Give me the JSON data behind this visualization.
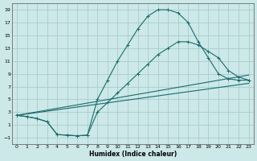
{
  "title": "",
  "xlabel": "Humidex (Indice chaleur)",
  "bg_color": "#cce8e8",
  "grid_color": "#aacccc",
  "line_color": "#1a6b6b",
  "xlim": [
    -0.5,
    23.5
  ],
  "ylim": [
    -2.0,
    20.0
  ],
  "xticks": [
    0,
    1,
    2,
    3,
    4,
    5,
    6,
    7,
    8,
    9,
    10,
    11,
    12,
    13,
    14,
    15,
    16,
    17,
    18,
    19,
    20,
    21,
    22,
    23
  ],
  "yticks": [
    -1,
    1,
    3,
    5,
    7,
    9,
    11,
    13,
    15,
    17,
    19
  ],
  "curve_x": [
    0,
    1,
    2,
    3,
    4,
    5,
    6,
    7,
    8,
    9,
    10,
    11,
    12,
    13,
    14,
    15,
    16,
    17,
    18,
    19,
    20,
    21,
    22,
    23
  ],
  "curve_y": [
    2.5,
    2.3,
    2.0,
    1.5,
    -0.5,
    -0.6,
    -0.7,
    -0.6,
    5.0,
    8.0,
    11.0,
    13.5,
    16.0,
    18.0,
    19.0,
    19.0,
    18.5,
    17.0,
    14.0,
    11.5,
    9.0,
    8.2,
    8.0,
    8.0
  ],
  "line1_x": [
    0,
    23
  ],
  "line1_y": [
    2.5,
    7.5
  ],
  "line2_x": [
    0,
    23
  ],
  "line2_y": [
    2.5,
    8.8
  ],
  "line3_x": [
    0,
    1,
    2,
    3,
    4,
    5,
    6,
    7,
    8,
    9,
    10,
    11,
    12,
    13,
    14,
    15,
    16,
    17,
    18,
    19,
    20,
    21,
    22,
    23
  ],
  "line3_y": [
    2.5,
    2.3,
    2.0,
    1.5,
    -0.5,
    -0.6,
    -0.7,
    -0.6,
    3.0,
    4.5,
    6.0,
    7.5,
    9.0,
    10.5,
    12.0,
    13.0,
    14.0,
    14.0,
    13.5,
    12.5,
    11.5,
    9.5,
    8.5,
    8.0
  ]
}
